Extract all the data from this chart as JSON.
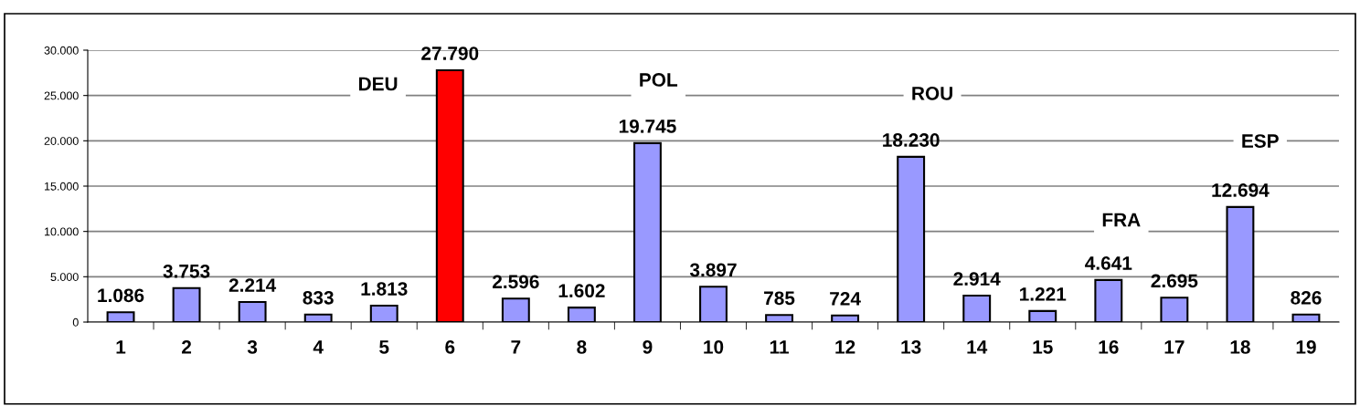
{
  "chart_data": {
    "type": "bar",
    "categories": [
      "1",
      "2",
      "3",
      "4",
      "5",
      "6",
      "7",
      "8",
      "9",
      "10",
      "11",
      "12",
      "13",
      "14",
      "15",
      "16",
      "17",
      "18",
      "19"
    ],
    "values": [
      1086,
      3753,
      2214,
      833,
      1813,
      27790,
      2596,
      1602,
      19745,
      3897,
      785,
      724,
      18230,
      2914,
      1221,
      4641,
      2695,
      12694,
      826
    ],
    "colors": [
      "#9999ff",
      "#9999ff",
      "#9999ff",
      "#9999ff",
      "#9999ff",
      "#ff0000",
      "#9999ff",
      "#9999ff",
      "#9999ff",
      "#9999ff",
      "#9999ff",
      "#9999ff",
      "#9999ff",
      "#9999ff",
      "#9999ff",
      "#9999ff",
      "#9999ff",
      "#9999ff",
      "#9999ff"
    ],
    "value_labels": [
      "1.086",
      "3.753",
      "2.214",
      "833",
      "1.813",
      "27.790",
      "2.596",
      "1.602",
      "19.745",
      "3.897",
      "785",
      "724",
      "18.230",
      "2.914",
      "1.221",
      "4.641",
      "2.695",
      "12.694",
      "826"
    ],
    "ylim": [
      0,
      30000
    ],
    "yticks": [
      {
        "value": 0,
        "label": "0"
      },
      {
        "value": 5000,
        "label": "5.000"
      },
      {
        "value": 10000,
        "label": "10.000"
      },
      {
        "value": 15000,
        "label": "15.000"
      },
      {
        "value": 20000,
        "label": "20.000"
      },
      {
        "value": 25000,
        "label": "25.000"
      },
      {
        "value": 30000,
        "label": "30.000"
      }
    ],
    "grid": "y",
    "annotations": [
      "DEU",
      "POL",
      "ROU",
      "FRA",
      "ESP"
    ]
  }
}
